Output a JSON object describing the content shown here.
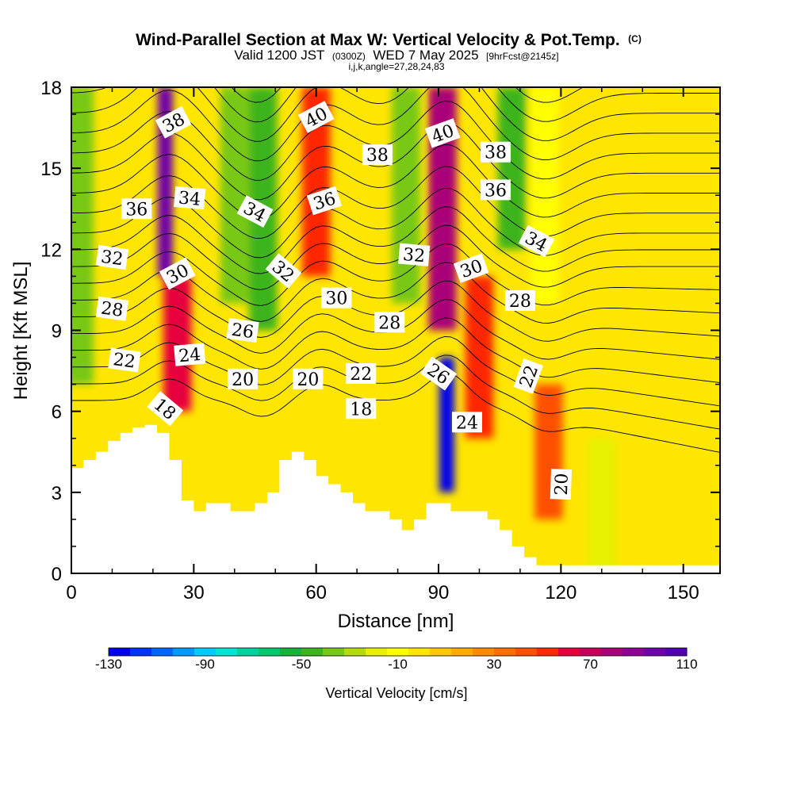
{
  "chart_data": {
    "type": "heatmap",
    "title": "Wind-Parallel Section at Max W: Vertical Velocity & Pot.Temp.",
    "title_mark": "(C)",
    "subtitle_parts": [
      "Valid 1200 JST",
      "(0300Z)",
      "WED 7 May 2025",
      "[9hrFcst@2145z]"
    ],
    "subtitle2": "i,j,k,angle=27,28,24,83",
    "xlabel": "Distance [nm]",
    "ylabel": "Height [Kft MSL]",
    "xlim": [
      0,
      159
    ],
    "ylim": [
      0,
      18
    ],
    "x_ticks": [
      "0",
      "30",
      "60",
      "90",
      "120",
      "150"
    ],
    "y_ticks": [
      "0",
      "3",
      "6",
      "9",
      "12",
      "15",
      "18"
    ],
    "colorbar": {
      "label": "Vertical Velocity [cm/s]",
      "min": -130,
      "max": 110,
      "ticks": [
        "-130",
        "-90",
        "-50",
        "-10",
        "30",
        "70",
        "110"
      ],
      "colors": [
        "#0000ee",
        "#0033ff",
        "#0066ff",
        "#0099ff",
        "#00ccff",
        "#00e6d2",
        "#00d2a0",
        "#00c86e",
        "#14b43c",
        "#3cb41e",
        "#78c814",
        "#b4dc0a",
        "#e6f000",
        "#ffff00",
        "#ffe600",
        "#ffc800",
        "#ffaa00",
        "#ff8c00",
        "#ff6e00",
        "#ff5000",
        "#ff2800",
        "#e6003c",
        "#c8005a",
        "#aa0078",
        "#8c0096",
        "#6e00aa",
        "#5000b4"
      ]
    },
    "w_columns": [
      {
        "x": 2,
        "w": -35,
        "y0": 7,
        "y1": 18
      },
      {
        "x": 23,
        "w": 100,
        "y0": 11,
        "y1": 18
      },
      {
        "x": 26,
        "w": 60,
        "y0": 6,
        "y1": 11
      },
      {
        "x": 40,
        "w": -40,
        "y0": 10,
        "y1": 18
      },
      {
        "x": 47,
        "w": -45,
        "y0": 9,
        "y1": 18
      },
      {
        "x": 60,
        "w": 50,
        "y0": 11,
        "y1": 18
      },
      {
        "x": 82,
        "w": -40,
        "y0": 10,
        "y1": 18
      },
      {
        "x": 91,
        "w": 75,
        "y0": 9,
        "y1": 18
      },
      {
        "x": 100,
        "w": 50,
        "y0": 5,
        "y1": 11
      },
      {
        "x": 108,
        "w": -45,
        "y0": 12,
        "y1": 18
      },
      {
        "x": 116,
        "w": -10,
        "y0": 10,
        "y1": 18
      },
      {
        "x": 117,
        "w": 45,
        "y0": 2,
        "y1": 7
      },
      {
        "x": 92,
        "w": -130,
        "y0": 3,
        "y1": 8
      },
      {
        "x": 130,
        "w": -15,
        "y0": 0,
        "y1": 5
      }
    ],
    "terrain": [
      {
        "x": 0,
        "h": 3.9
      },
      {
        "x": 3,
        "h": 4.2
      },
      {
        "x": 6,
        "h": 4.5
      },
      {
        "x": 9,
        "h": 4.9
      },
      {
        "x": 12,
        "h": 5.2
      },
      {
        "x": 15,
        "h": 5.4
      },
      {
        "x": 18,
        "h": 5.5
      },
      {
        "x": 21,
        "h": 5.2
      },
      {
        "x": 24,
        "h": 4.2
      },
      {
        "x": 27,
        "h": 2.7
      },
      {
        "x": 30,
        "h": 2.3
      },
      {
        "x": 33,
        "h": 2.6
      },
      {
        "x": 36,
        "h": 2.6
      },
      {
        "x": 39,
        "h": 2.3
      },
      {
        "x": 42,
        "h": 2.3
      },
      {
        "x": 45,
        "h": 2.6
      },
      {
        "x": 48,
        "h": 3.0
      },
      {
        "x": 51,
        "h": 4.2
      },
      {
        "x": 54,
        "h": 4.5
      },
      {
        "x": 57,
        "h": 4.2
      },
      {
        "x": 60,
        "h": 3.6
      },
      {
        "x": 63,
        "h": 3.3
      },
      {
        "x": 66,
        "h": 3.0
      },
      {
        "x": 69,
        "h": 2.6
      },
      {
        "x": 72,
        "h": 2.3
      },
      {
        "x": 75,
        "h": 2.3
      },
      {
        "x": 78,
        "h": 2.0
      },
      {
        "x": 81,
        "h": 1.6
      },
      {
        "x": 84,
        "h": 2.0
      },
      {
        "x": 87,
        "h": 2.6
      },
      {
        "x": 90,
        "h": 2.6
      },
      {
        "x": 93,
        "h": 2.3
      },
      {
        "x": 96,
        "h": 2.3
      },
      {
        "x": 99,
        "h": 2.3
      },
      {
        "x": 102,
        "h": 2.0
      },
      {
        "x": 105,
        "h": 1.6
      },
      {
        "x": 108,
        "h": 1.0
      },
      {
        "x": 111,
        "h": 0.6
      },
      {
        "x": 114,
        "h": 0.3
      },
      {
        "x": 117,
        "h": 0.3
      },
      {
        "x": 120,
        "h": 0.3
      },
      {
        "x": 159,
        "h": 0.3
      }
    ],
    "theta_labels": [
      {
        "text": "38",
        "x": 25,
        "y": 16.7,
        "rot": -28
      },
      {
        "text": "40",
        "x": 60,
        "y": 16.9,
        "rot": -28
      },
      {
        "text": "40",
        "x": 91,
        "y": 16.3,
        "rot": -20
      },
      {
        "text": "38",
        "x": 75,
        "y": 15.5,
        "rot": 0
      },
      {
        "text": "38",
        "x": 104,
        "y": 15.6,
        "rot": 0
      },
      {
        "text": "36",
        "x": 16,
        "y": 13.5,
        "rot": 0
      },
      {
        "text": "34",
        "x": 29,
        "y": 13.9,
        "rot": 5
      },
      {
        "text": "34",
        "x": 45,
        "y": 13.4,
        "rot": 28
      },
      {
        "text": "36",
        "x": 62,
        "y": 13.8,
        "rot": -18
      },
      {
        "text": "36",
        "x": 104,
        "y": 14.2,
        "rot": 0
      },
      {
        "text": "34",
        "x": 114,
        "y": 12.3,
        "rot": 28
      },
      {
        "text": "32",
        "x": 10,
        "y": 11.7,
        "rot": 8
      },
      {
        "text": "32",
        "x": 52,
        "y": 11.2,
        "rot": 40
      },
      {
        "text": "30",
        "x": 26,
        "y": 11.1,
        "rot": -28
      },
      {
        "text": "32",
        "x": 84,
        "y": 11.8,
        "rot": 5
      },
      {
        "text": "30",
        "x": 98,
        "y": 11.3,
        "rot": -20
      },
      {
        "text": "30",
        "x": 65,
        "y": 10.2,
        "rot": 0
      },
      {
        "text": "28",
        "x": 10,
        "y": 9.8,
        "rot": 8
      },
      {
        "text": "28",
        "x": 78,
        "y": 9.3,
        "rot": 0
      },
      {
        "text": "28",
        "x": 110,
        "y": 10.1,
        "rot": 0
      },
      {
        "text": "26",
        "x": 42,
        "y": 9.0,
        "rot": 8
      },
      {
        "text": "26",
        "x": 90,
        "y": 7.4,
        "rot": 35
      },
      {
        "text": "22",
        "x": 13,
        "y": 7.9,
        "rot": 8
      },
      {
        "text": "24",
        "x": 29,
        "y": 8.1,
        "rot": -5
      },
      {
        "text": "22",
        "x": 71,
        "y": 7.4,
        "rot": 0
      },
      {
        "text": "22",
        "x": 112,
        "y": 7.3,
        "rot": -70
      },
      {
        "text": "20",
        "x": 42,
        "y": 7.2,
        "rot": 0
      },
      {
        "text": "20",
        "x": 58,
        "y": 7.2,
        "rot": 0
      },
      {
        "text": "18",
        "x": 23,
        "y": 6.1,
        "rot": 40
      },
      {
        "text": "18",
        "x": 71,
        "y": 6.1,
        "rot": 0
      },
      {
        "text": "24",
        "x": 97,
        "y": 5.6,
        "rot": 0
      },
      {
        "text": "20",
        "x": 120,
        "y": 3.3,
        "rot": -88
      }
    ]
  }
}
